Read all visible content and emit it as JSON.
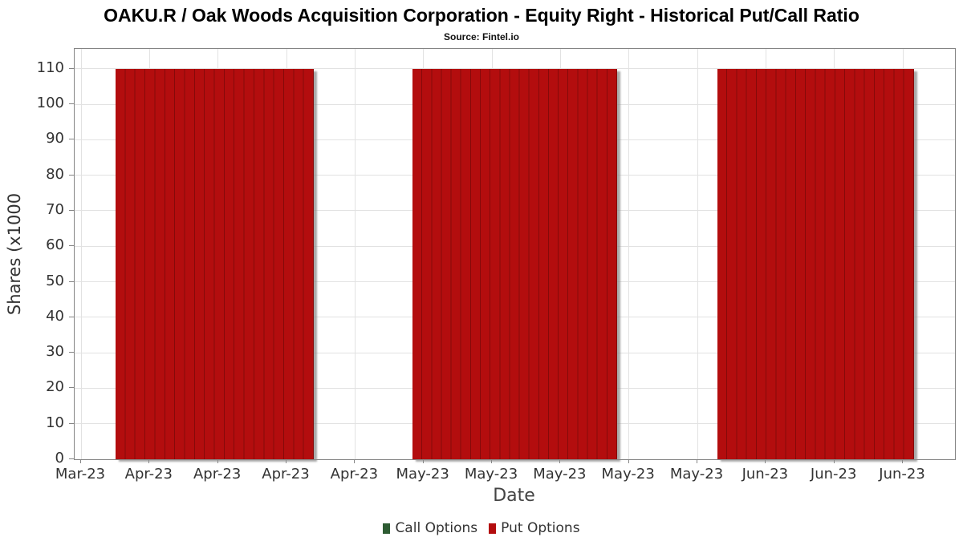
{
  "header": {
    "title": "OAKU.R / Oak Woods Acquisition Corporation - Equity Right - Historical Put/Call Ratio",
    "subtitle": "Source: Fintel.io"
  },
  "chart_data": {
    "type": "bar",
    "title": "OAKU.R / Oak Woods Acquisition Corporation - Equity Right - Historical Put/Call Ratio",
    "subtitle": "Source: Fintel.io",
    "xlabel": "Date",
    "ylabel": "Shares (x1000",
    "grid": true,
    "legend_position": "bottom-center",
    "ylim": [
      0,
      115.6
    ],
    "y_ticks": [
      0,
      10,
      20,
      30,
      40,
      50,
      60,
      70,
      80,
      90,
      100,
      110
    ],
    "x_tick_labels": [
      "Mar-23",
      "Apr-23",
      "Apr-23",
      "Apr-23",
      "Apr-23",
      "May-23",
      "May-23",
      "May-23",
      "May-23",
      "May-23",
      "Jun-23",
      "Jun-23",
      "Jun-23"
    ],
    "x_ticks": {
      "first_frac": 0.0073,
      "spacing_frac": 0.07779
    },
    "colors": {
      "call": "#2e5c33",
      "put": "#b30d0e",
      "put_separator": "#850a0a",
      "grid": "#e2e2e2",
      "frame": "#848484"
    },
    "legend": [
      {
        "label": "Call Options",
        "color": "#2e5c33"
      },
      {
        "label": "Put Options",
        "color": "#b30d0e"
      }
    ],
    "series": [
      {
        "name": "Call Options",
        "color": "#2e5c33",
        "groups": []
      },
      {
        "name": "Put Options",
        "color": "#b30d0e",
        "groups": [
          {
            "period": "Apr-23",
            "bar_count": 20,
            "value_per_bar": 110,
            "start_frac": 0.0465,
            "end_frac": 0.2717
          },
          {
            "period": "May-23",
            "bar_count": 21,
            "value_per_bar": 110,
            "start_frac": 0.3838,
            "end_frac": 0.6162
          },
          {
            "period": "Jun-23",
            "bar_count": 20,
            "value_per_bar": 110,
            "start_frac": 0.7302,
            "end_frac": 0.9535
          }
        ]
      }
    ]
  }
}
